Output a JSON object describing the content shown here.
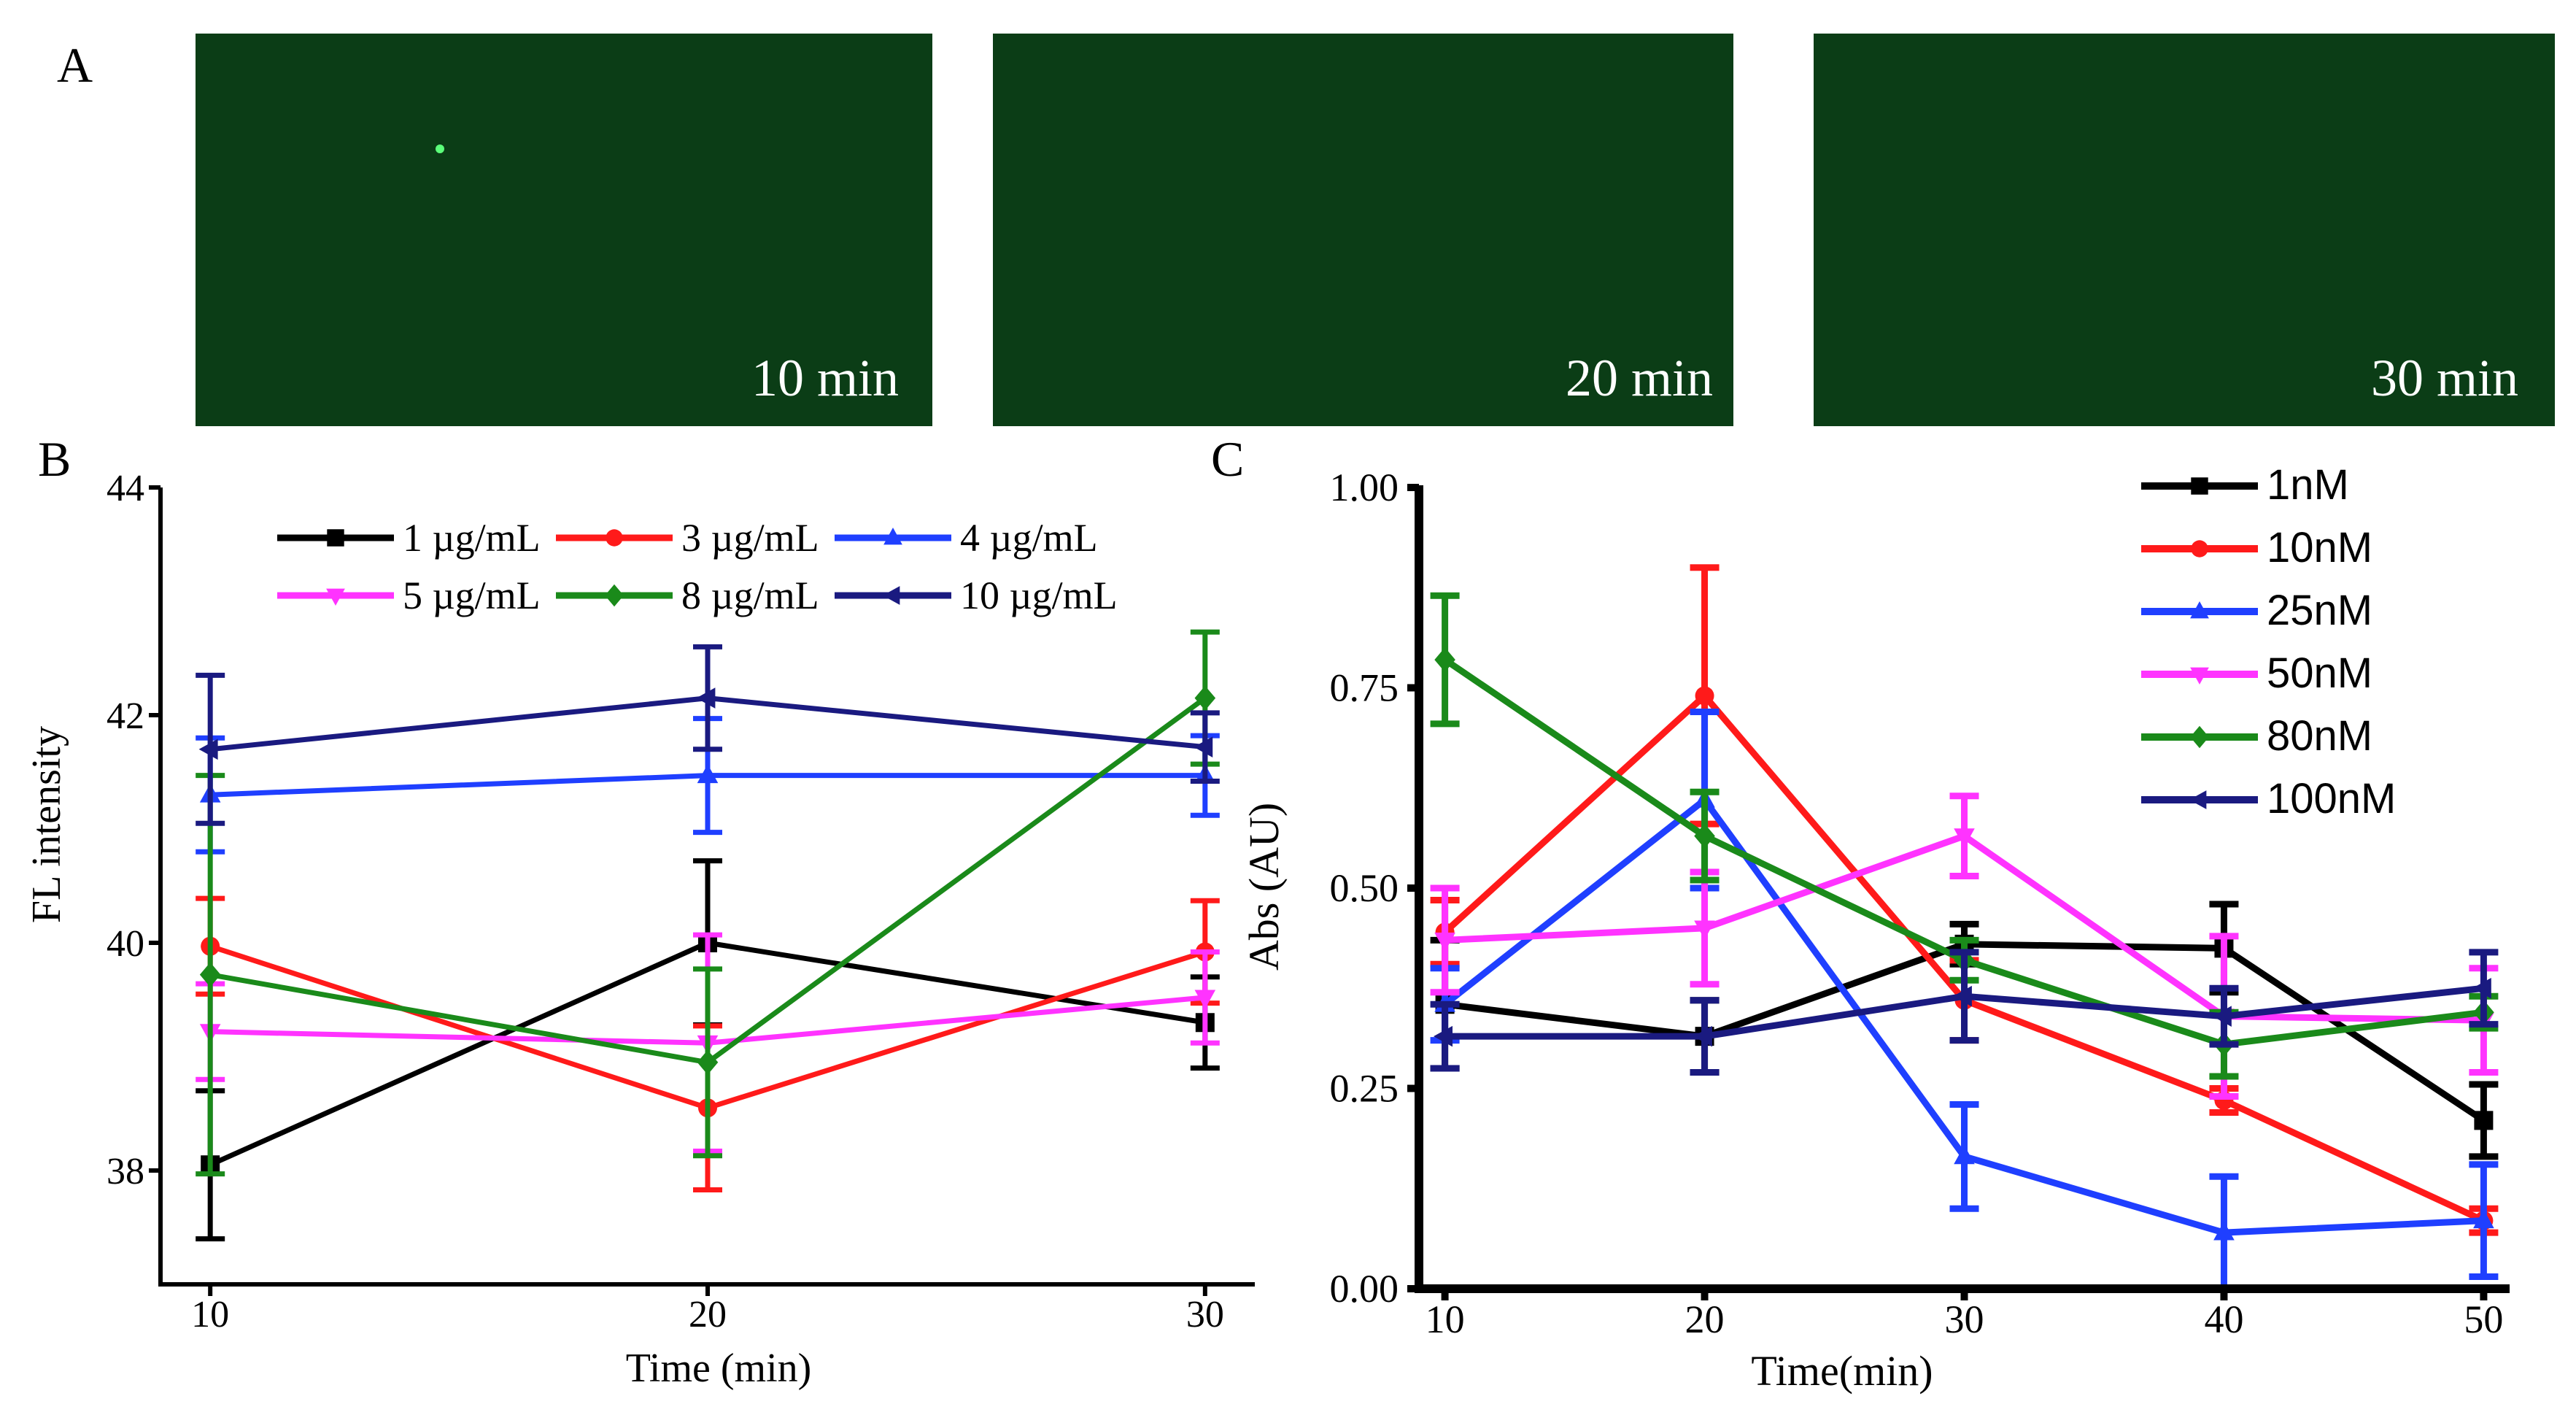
{
  "panel_labels": {
    "a": "A",
    "b": "B",
    "c": "C"
  },
  "micrographs": [
    {
      "label": "10 min",
      "background": "#0b3d16"
    },
    {
      "label": "20 min",
      "background": "#0b3d16"
    },
    {
      "label": "30 min",
      "background": "#0b3d16"
    }
  ],
  "chart_data": [
    {
      "panel": "B",
      "type": "line",
      "xlabel": "Time (min)",
      "ylabel": "FL intensity",
      "x": [
        10,
        20,
        30
      ],
      "xticks": [
        "10",
        "20",
        "30"
      ],
      "yticks": [
        "38",
        "40",
        "42",
        "44"
      ],
      "xlim": [
        9,
        31
      ],
      "ylim": [
        37,
        44
      ],
      "legend_placement": "top",
      "series": [
        {
          "name": "1 µg/mL",
          "color": "#000000",
          "marker": "square",
          "values": [
            38.05,
            40.0,
            39.3
          ],
          "errors": [
            0.65,
            0.72,
            0.4
          ]
        },
        {
          "name": "3 µg/mL",
          "color": "#ff1a1a",
          "marker": "circle",
          "values": [
            39.97,
            38.55,
            39.92
          ],
          "errors": [
            0.42,
            0.72,
            0.45
          ]
        },
        {
          "name": "4 µg/mL",
          "color": "#1f3fff",
          "marker": "triangle-up",
          "values": [
            41.3,
            41.47,
            41.47
          ],
          "errors": [
            0.5,
            0.5,
            0.35
          ]
        },
        {
          "name": "5 µg/mL",
          "color": "#ff33ff",
          "marker": "triangle-down",
          "values": [
            39.22,
            39.12,
            39.52
          ],
          "errors": [
            0.42,
            0.95,
            0.4
          ]
        },
        {
          "name": "8 µg/mL",
          "color": "#1a8a1a",
          "marker": "diamond",
          "values": [
            39.72,
            38.95,
            42.15
          ],
          "errors": [
            1.75,
            0.82,
            0.58
          ]
        },
        {
          "name": "10 µg/mL",
          "color": "#1a1a80",
          "marker": "triangle-left",
          "values": [
            41.7,
            42.15,
            41.72
          ],
          "errors": [
            0.65,
            0.45,
            0.3
          ]
        }
      ]
    },
    {
      "panel": "C",
      "type": "line",
      "xlabel": "Time(min)",
      "ylabel": "Abs (AU)",
      "x": [
        10,
        20,
        30,
        40,
        50
      ],
      "xticks": [
        "10",
        "20",
        "30",
        "40",
        "50"
      ],
      "yticks": [
        "0.00",
        "0.25",
        "0.50",
        "0.75",
        "1.00"
      ],
      "xlim": [
        9,
        51
      ],
      "ylim": [
        0,
        1
      ],
      "legend_placement": "top-right",
      "series": [
        {
          "name": "1nM",
          "color": "#000000",
          "marker": "square",
          "values": [
            0.355,
            0.315,
            0.43,
            0.425,
            0.21
          ],
          "errors": [
            0.08,
            0.045,
            0.025,
            0.055,
            0.045
          ]
        },
        {
          "name": "10nM",
          "color": "#ff1a1a",
          "marker": "circle",
          "values": [
            0.445,
            0.74,
            0.36,
            0.235,
            0.085
          ],
          "errors": [
            0.04,
            0.16,
            0.05,
            0.015,
            0.015
          ]
        },
        {
          "name": "25nM",
          "color": "#1f3fff",
          "marker": "triangle-up",
          "values": [
            0.355,
            0.61,
            0.165,
            0.07,
            0.085
          ],
          "errors": [
            0.045,
            0.11,
            0.065,
            0.07,
            0.07
          ]
        },
        {
          "name": "50nM",
          "color": "#ff33ff",
          "marker": "triangle-down",
          "values": [
            0.435,
            0.45,
            0.565,
            0.34,
            0.335
          ],
          "errors": [
            0.065,
            0.07,
            0.05,
            0.1,
            0.065
          ]
        },
        {
          "name": "80nM",
          "color": "#1a8a1a",
          "marker": "diamond",
          "values": [
            0.785,
            0.565,
            0.41,
            0.305,
            0.345
          ],
          "errors": [
            0.08,
            0.055,
            0.025,
            0.04,
            0.02
          ]
        },
        {
          "name": "100nM",
          "color": "#1a1a80",
          "marker": "triangle-left",
          "values": [
            0.315,
            0.315,
            0.365,
            0.34,
            0.375
          ],
          "errors": [
            0.04,
            0.045,
            0.055,
            0.035,
            0.045
          ]
        }
      ]
    }
  ]
}
